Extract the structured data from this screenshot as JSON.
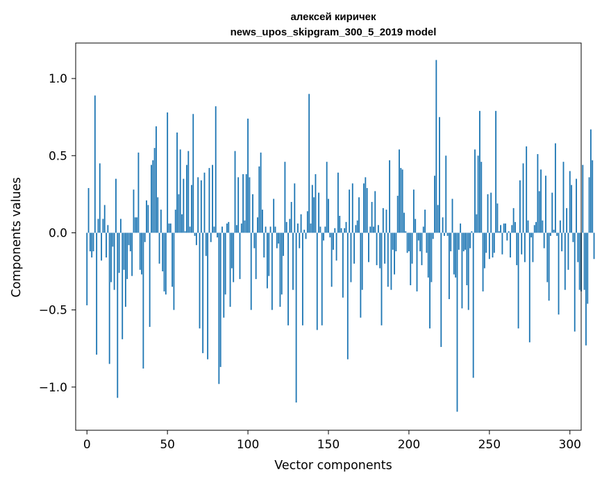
{
  "colors": {
    "bar": "#1f77b4",
    "axis": "#000000"
  },
  "chart_data": {
    "type": "bar",
    "title": "алексей киричек",
    "subtitle": "news_upos_skipgram_300_5_2019 model",
    "xlabel": "Vector components",
    "ylabel": "Components values",
    "xlim": [
      -7,
      307
    ],
    "ylim": [
      -1.28,
      1.23
    ],
    "xticks": [
      0,
      50,
      100,
      150,
      200,
      250,
      300
    ],
    "xtick_labels": [
      "0",
      "50",
      "100",
      "150",
      "200",
      "250",
      "300"
    ],
    "yticks": [
      -1.0,
      -0.5,
      0.0,
      0.5,
      1.0
    ],
    "ytick_labels": [
      "−1.0",
      "−0.5",
      "0.0",
      "0.5",
      "1.0"
    ],
    "grid": false,
    "x_start": 0,
    "values": [
      -0.47,
      0.29,
      -0.12,
      -0.16,
      -0.12,
      0.89,
      -0.79,
      0.09,
      0.45,
      -0.18,
      0.09,
      0.18,
      -0.16,
      0.05,
      -0.85,
      -0.32,
      -0.09,
      -0.37,
      0.35,
      -1.07,
      -0.26,
      0.09,
      -0.69,
      -0.24,
      -0.48,
      -0.3,
      -0.08,
      -0.12,
      -0.28,
      0.28,
      0.1,
      0.1,
      0.52,
      -0.24,
      -0.27,
      -0.88,
      -0.06,
      0.21,
      0.18,
      -0.61,
      0.44,
      0.47,
      0.55,
      0.69,
      0.23,
      -0.2,
      0.15,
      -0.25,
      -0.38,
      -0.4,
      0.78,
      0.06,
      0.06,
      -0.35,
      -0.5,
      0.15,
      0.65,
      0.25,
      0.54,
      0.12,
      0.35,
      0.01,
      0.44,
      0.53,
      0.04,
      0.31,
      0.77,
      -0.02,
      -0.08,
      0.36,
      -0.62,
      0.34,
      -0.78,
      0.39,
      -0.15,
      -0.82,
      0.42,
      -0.06,
      0.44,
      0.04,
      0.82,
      -0.03,
      -0.98,
      -0.87,
      0.04,
      -0.55,
      -0.4,
      0.06,
      0.07,
      -0.48,
      -0.23,
      -0.32,
      0.53,
      0.05,
      0.36,
      -0.3,
      0.06,
      0.38,
      0.08,
      0.38,
      0.74,
      0.36,
      -0.5,
      0.25,
      -0.1,
      -0.3,
      0.1,
      0.43,
      0.52,
      0.15,
      -0.16,
      0.04,
      -0.36,
      -0.28,
      0.04,
      -0.5,
      0.22,
      0.04,
      -0.1,
      -0.07,
      -0.48,
      -0.4,
      -0.15,
      0.46,
      0.07,
      -0.6,
      0.09,
      0.2,
      -0.37,
      0.32,
      -1.1,
      0.06,
      -0.1,
      0.12,
      -0.6,
      0.02,
      -0.04,
      0.14,
      0.9,
      0.06,
      0.31,
      0.23,
      0.38,
      -0.63,
      0.26,
      0.04,
      -0.6,
      -0.05,
      0.04,
      0.46,
      0.22,
      -0.03,
      -0.35,
      -0.11,
      0.03,
      -0.18,
      0.39,
      0.11,
      0.03,
      -0.42,
      0.03,
      0.07,
      -0.82,
      0.28,
      -0.32,
      0.32,
      -0.2,
      0.05,
      0.08,
      0.23,
      -0.55,
      -0.37,
      0.32,
      0.36,
      0.29,
      -0.19,
      0.04,
      0.2,
      0.04,
      0.27,
      -0.21,
      0.05,
      -0.23,
      -0.6,
      0.16,
      -0.2,
      0.15,
      -0.35,
      0.47,
      -0.37,
      -0.11,
      -0.27,
      -0.12,
      0.24,
      0.54,
      0.42,
      0.41,
      0.13,
      0.01,
      -0.13,
      -0.12,
      -0.34,
      -0.2,
      0.28,
      0.09,
      -0.38,
      -0.05,
      -0.12,
      -0.21,
      0.04,
      0.15,
      -0.13,
      -0.29,
      -0.62,
      -0.32,
      -0.04,
      0.37,
      1.12,
      0.18,
      0.75,
      -0.74,
      0.1,
      -0.02,
      0.5,
      -0.02,
      -0.43,
      -0.12,
      0.22,
      -0.27,
      -0.29,
      -1.16,
      -0.11,
      0.06,
      -0.49,
      -0.12,
      -0.11,
      -0.34,
      -0.5,
      -0.1,
      0.01,
      -0.94,
      0.54,
      0.12,
      0.5,
      0.79,
      0.46,
      -0.38,
      -0.23,
      -0.13,
      0.25,
      -0.17,
      0.26,
      -0.16,
      -0.13,
      0.79,
      0.19,
      0.01,
      0.05,
      -0.14,
      0.06,
      0.06,
      -0.05,
      0.01,
      -0.16,
      0.05,
      0.16,
      0.07,
      -0.21,
      -0.62,
      0.34,
      -0.14,
      0.45,
      -0.19,
      0.56,
      0.08,
      -0.71,
      -0.03,
      -0.19,
      0.05,
      0.07,
      0.51,
      0.27,
      0.41,
      0.08,
      -0.1,
      0.37,
      -0.32,
      -0.44,
      -0.02,
      0.26,
      0.02,
      0.58,
      -0.02,
      -0.53,
      0.08,
      -0.12,
      0.46,
      -0.37,
      0.16,
      -0.24,
      0.4,
      0.31,
      -0.06,
      -0.64,
      0.35,
      -0.19,
      -0.37,
      -0.38,
      0.44,
      -0.37,
      -0.73,
      -0.46,
      0.36,
      0.67,
      0.47,
      -0.17
    ]
  }
}
